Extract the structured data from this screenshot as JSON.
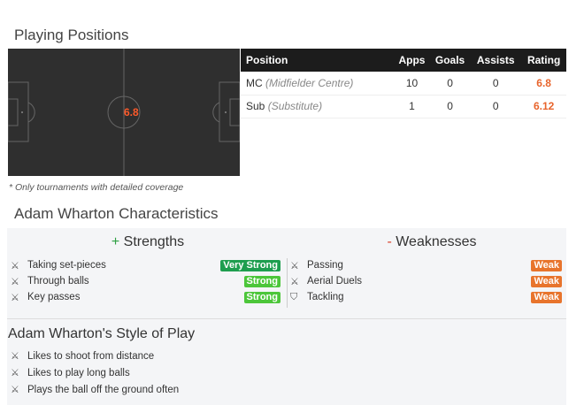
{
  "positions": {
    "title": "Playing Positions",
    "pitch_marker": "6.8",
    "columns": [
      "Position",
      "Apps",
      "Goals",
      "Assists",
      "Rating"
    ],
    "rows": [
      {
        "code": "MC",
        "name": "(Midfielder Centre)",
        "apps": "10",
        "goals": "0",
        "assists": "0",
        "rating": "6.8"
      },
      {
        "code": "Sub",
        "name": "(Substitute)",
        "apps": "1",
        "goals": "0",
        "assists": "0",
        "rating": "6.12"
      }
    ],
    "note": "* Only tournaments with detailed coverage"
  },
  "characteristics": {
    "title": "Adam Wharton Characteristics",
    "strengths_sign": "+",
    "strengths_title": "Strengths",
    "weaknesses_sign": "-",
    "weaknesses_title": "Weaknesses",
    "strengths": [
      {
        "label": "Taking set-pieces",
        "level": "Very Strong",
        "color": "#1e9e4f",
        "icon": "sword-icon"
      },
      {
        "label": "Through balls",
        "level": "Strong",
        "color": "#4cc63a",
        "icon": "sword-icon"
      },
      {
        "label": "Key passes",
        "level": "Strong",
        "color": "#4cc63a",
        "icon": "sword-icon"
      }
    ],
    "weaknesses": [
      {
        "label": "Passing",
        "level": "Weak",
        "color": "#e8742c",
        "icon": "sword-icon"
      },
      {
        "label": "Aerial Duels",
        "level": "Weak",
        "color": "#e8742c",
        "icon": "sword-icon"
      },
      {
        "label": "Tackling",
        "level": "Weak",
        "color": "#e8742c",
        "icon": "shield-icon"
      }
    ]
  },
  "style": {
    "title": "Adam Wharton's Style of Play",
    "items": [
      "Likes to shoot from distance",
      "Likes to play long balls",
      "Plays the ball off the ground often"
    ]
  }
}
